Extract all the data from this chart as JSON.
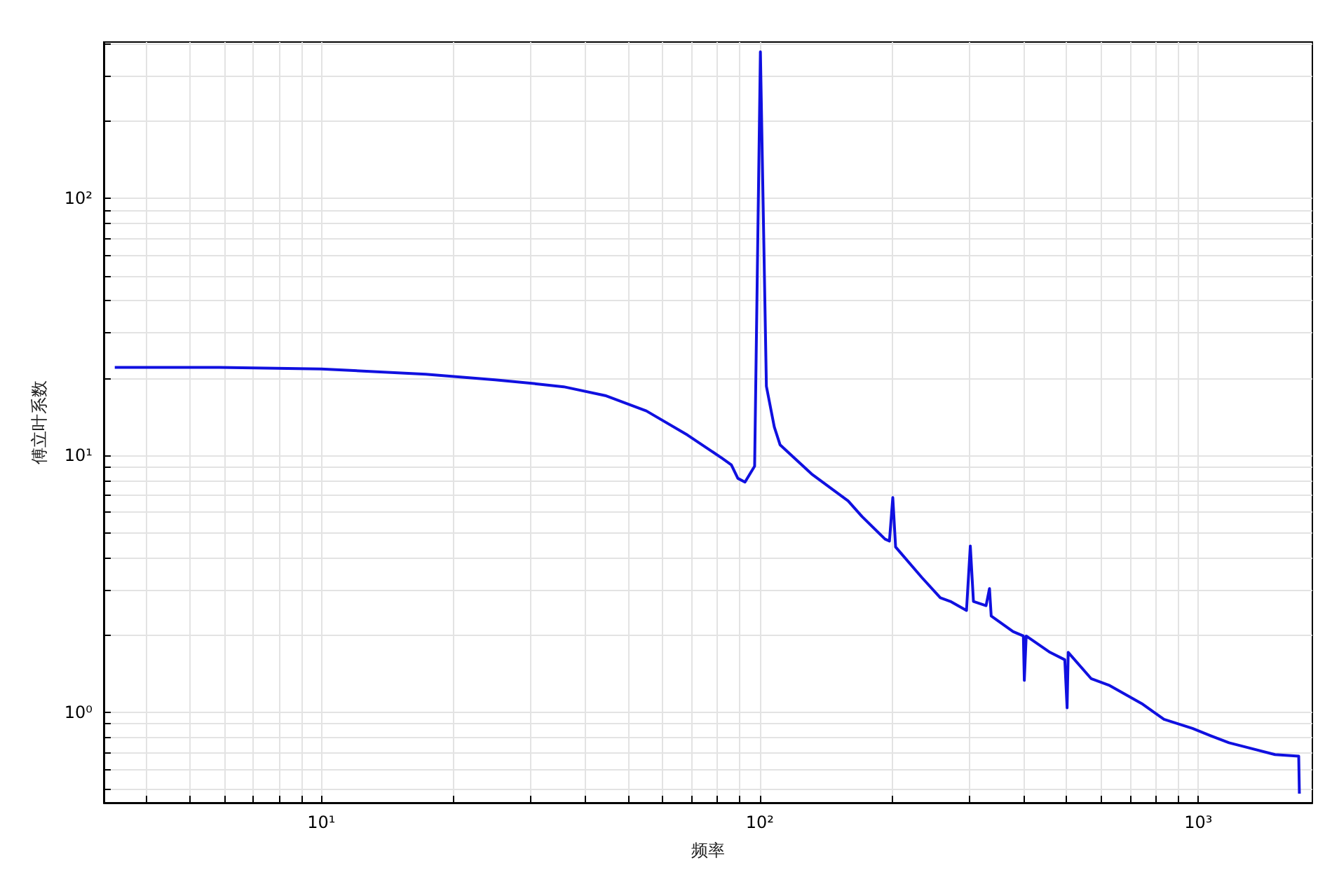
{
  "chart_data": {
    "type": "line",
    "xlabel": "频率",
    "ylabel": "傅立叶系数",
    "log": "xy",
    "grid": true,
    "marker": "none",
    "line_style": "solid",
    "xlim": [
      3.19,
      1820
    ],
    "ylim": [
      0.444,
      407
    ],
    "xticks": [
      {
        "value": 4,
        "label": null
      },
      {
        "value": 5,
        "label": null
      },
      {
        "value": 6,
        "label": null
      },
      {
        "value": 7,
        "label": null
      },
      {
        "value": 8,
        "label": null
      },
      {
        "value": 9,
        "label": null
      },
      {
        "value": 10,
        "label": "10¹"
      },
      {
        "value": 20,
        "label": null
      },
      {
        "value": 30,
        "label": null
      },
      {
        "value": 40,
        "label": null
      },
      {
        "value": 50,
        "label": null
      },
      {
        "value": 60,
        "label": null
      },
      {
        "value": 70,
        "label": null
      },
      {
        "value": 80,
        "label": null
      },
      {
        "value": 90,
        "label": null
      },
      {
        "value": 100,
        "label": "10²"
      },
      {
        "value": 200,
        "label": null
      },
      {
        "value": 300,
        "label": null
      },
      {
        "value": 400,
        "label": null
      },
      {
        "value": 500,
        "label": null
      },
      {
        "value": 600,
        "label": null
      },
      {
        "value": 700,
        "label": null
      },
      {
        "value": 800,
        "label": null
      },
      {
        "value": 900,
        "label": null
      },
      {
        "value": 1000,
        "label": "10³"
      }
    ],
    "yticks": [
      {
        "value": 0.5,
        "label": null
      },
      {
        "value": 0.6,
        "label": null
      },
      {
        "value": 0.7,
        "label": null
      },
      {
        "value": 0.8,
        "label": null
      },
      {
        "value": 0.9,
        "label": null
      },
      {
        "value": 1,
        "label": "10⁰"
      },
      {
        "value": 2,
        "label": null
      },
      {
        "value": 3,
        "label": null
      },
      {
        "value": 4,
        "label": null
      },
      {
        "value": 5,
        "label": null
      },
      {
        "value": 6,
        "label": null
      },
      {
        "value": 7,
        "label": null
      },
      {
        "value": 8,
        "label": null
      },
      {
        "value": 9,
        "label": null
      },
      {
        "value": 10,
        "label": "10¹"
      },
      {
        "value": 20,
        "label": null
      },
      {
        "value": 30,
        "label": null
      },
      {
        "value": 40,
        "label": null
      },
      {
        "value": 50,
        "label": null
      },
      {
        "value": 60,
        "label": null
      },
      {
        "value": 70,
        "label": null
      },
      {
        "value": 80,
        "label": null
      },
      {
        "value": 90,
        "label": null
      },
      {
        "value": 100,
        "label": "10²"
      },
      {
        "value": 200,
        "label": null
      },
      {
        "value": 300,
        "label": null
      },
      {
        "value": 400,
        "label": null
      }
    ],
    "series": [
      {
        "color": "#1010e0",
        "x": [
          3.38,
          5.86,
          10,
          17.3,
          24.9,
          30.9,
          35.7,
          44.4,
          55.1,
          68.4,
          82,
          86.1,
          89.1,
          92.5,
          97.3,
          100.3,
          103.5,
          107.9,
          111.2,
          131.2,
          159,
          171,
          193,
          197.5,
          201,
          204,
          234,
          258,
          272,
          296,
          302,
          307,
          328,
          334,
          337,
          378,
          399,
          401,
          405,
          459,
          496,
          502,
          505,
          570,
          628,
          743,
          835,
          970,
          1067,
          1175,
          1496,
          1694,
          1700
        ],
        "values": [
          22,
          22,
          21.7,
          20.7,
          19.7,
          19,
          18.5,
          17.1,
          14.9,
          12,
          9.75,
          9.19,
          8.14,
          7.87,
          9.08,
          373,
          18.6,
          12.9,
          11,
          8.47,
          6.65,
          5.78,
          4.72,
          4.64,
          6.85,
          4.4,
          3.35,
          2.79,
          2.7,
          2.49,
          4.44,
          2.7,
          2.6,
          3.03,
          2.37,
          2.06,
          1.98,
          1.33,
          1.98,
          1.71,
          1.6,
          1.04,
          1.71,
          1.35,
          1.27,
          1.08,
          0.938,
          0.865,
          0.81,
          0.76,
          0.684,
          0.674,
          0.482
        ]
      }
    ]
  }
}
